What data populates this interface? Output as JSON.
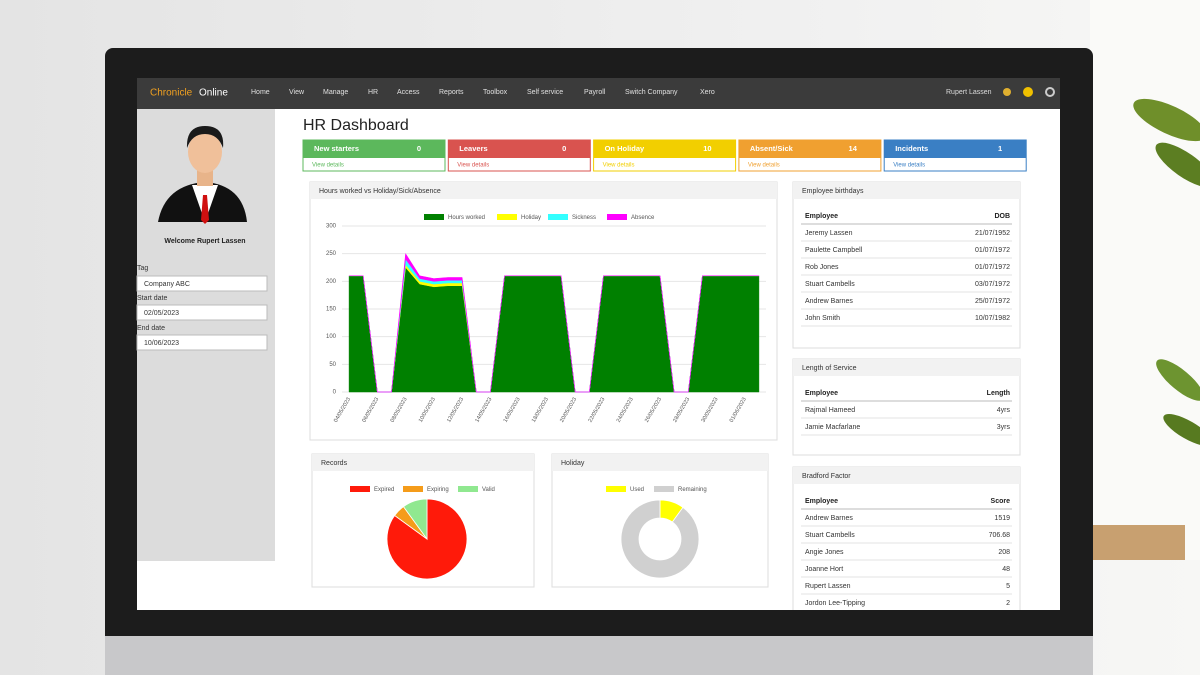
{
  "nav": {
    "brand_a": "Chronicle",
    "brand_b": "Online",
    "items": [
      "Home",
      "View",
      "Manage",
      "HR",
      "Access",
      "Reports",
      "Toolbox",
      "Self service",
      "Payroll",
      "Switch Company",
      "Xero"
    ],
    "user": "Rupert Lassen"
  },
  "sidebar": {
    "welcome": "Welcome Rupert Lassen",
    "tag_label": "Tag",
    "tag_value": "Company ABC",
    "start_label": "Start date",
    "start_value": "02/05/2023",
    "end_label": "End date",
    "end_value": "10/06/2023"
  },
  "page_title": "HR Dashboard",
  "cards": [
    {
      "title": "New starters",
      "count": 0,
      "link": "View details",
      "color": "#5cb85c"
    },
    {
      "title": "Leavers",
      "count": 0,
      "link": "View details",
      "color": "#d9534f"
    },
    {
      "title": "On Holiday",
      "count": 10,
      "link": "View details",
      "color": "#f2cf00"
    },
    {
      "title": "Absent/Sick",
      "count": 14,
      "link": "View details",
      "color": "#f0a030"
    },
    {
      "title": "Incidents",
      "count": 1,
      "link": "View details",
      "color": "#3a7fc4"
    }
  ],
  "hours_chart": {
    "type": "area",
    "title": "Hours worked vs Holiday/Sick/Absence",
    "categories": [
      "04/05/2023",
      null,
      "06/05/2023",
      null,
      "08/05/2023",
      null,
      "10/05/2023",
      null,
      "12/05/2023",
      null,
      "14/05/2023",
      null,
      "16/05/2023",
      null,
      "18/05/2023",
      null,
      "20/05/2023",
      null,
      "22/05/2023",
      null,
      "24/05/2023",
      null,
      "26/05/2023",
      null,
      "28/05/2023",
      null,
      "30/05/2023",
      null,
      "01/06/2023",
      null
    ],
    "series": [
      {
        "name": "Hours worked",
        "color": "#008000",
        "values": [
          210,
          210,
          0,
          0,
          225,
          195,
          190,
          192,
          192,
          0,
          0,
          210,
          210,
          210,
          210,
          210,
          0,
          0,
          210,
          210,
          210,
          210,
          210,
          0,
          0,
          210,
          210,
          210,
          210,
          210
        ]
      },
      {
        "name": "Holiday",
        "color": "#ffff00",
        "values": [
          0,
          0,
          0,
          0,
          5,
          5,
          5,
          5,
          5,
          0,
          0,
          0,
          0,
          0,
          0,
          0,
          0,
          0,
          0,
          0,
          0,
          0,
          0,
          0,
          0,
          0,
          0,
          0,
          0,
          0
        ]
      },
      {
        "name": "Sickness",
        "color": "#33ffff",
        "values": [
          0,
          0,
          0,
          0,
          10,
          5,
          5,
          5,
          5,
          0,
          0,
          0,
          0,
          0,
          0,
          0,
          0,
          0,
          0,
          0,
          0,
          0,
          0,
          0,
          0,
          0,
          0,
          0,
          0,
          0
        ]
      },
      {
        "name": "Absence",
        "color": "#ff00ff",
        "values": [
          0,
          0,
          0,
          0,
          10,
          5,
          5,
          5,
          5,
          0,
          0,
          0,
          0,
          0,
          0,
          0,
          0,
          0,
          0,
          0,
          0,
          0,
          0,
          0,
          0,
          0,
          0,
          0,
          0,
          0
        ]
      }
    ],
    "ylim": [
      0,
      300
    ],
    "yticks": [
      0,
      50,
      100,
      150,
      200,
      250,
      300
    ],
    "grid": true
  },
  "records_chart": {
    "type": "pie",
    "title": "Records",
    "categories": [
      "Expired",
      "Expiring",
      "Valid"
    ],
    "values": [
      85,
      5,
      10
    ],
    "colors": [
      "#ff1a0a",
      "#f59c1a",
      "#90e890"
    ]
  },
  "holiday_chart": {
    "type": "donut",
    "title": "Holiday",
    "categories": [
      "Used",
      "Remaining"
    ],
    "values": [
      10,
      90
    ],
    "colors": [
      "#ffff00",
      "#d0d0d0"
    ]
  },
  "tables": [
    {
      "title": "Employee birthdays",
      "columns": [
        "Employee",
        "DOB"
      ],
      "rows": [
        [
          "Jeremy Lassen",
          "21/07/1952"
        ],
        [
          "Paulette Campbell",
          "01/07/1972"
        ],
        [
          "Rob Jones",
          "01/07/1972"
        ],
        [
          "Stuart Cambells",
          "03/07/1972"
        ],
        [
          "Andrew Barnes",
          "25/07/1972"
        ],
        [
          "John Smith",
          "10/07/1982"
        ]
      ]
    },
    {
      "title": "Length of Service",
      "columns": [
        "Employee",
        "Length"
      ],
      "rows": [
        [
          "Rajmal Hameed",
          "4yrs"
        ],
        [
          "Jamie Macfarlane",
          "3yrs"
        ]
      ]
    },
    {
      "title": "Bradford Factor",
      "columns": [
        "Employee",
        "Score"
      ],
      "rows": [
        [
          "Andrew Barnes",
          1519
        ],
        [
          "Stuart Cambells",
          706.68
        ],
        [
          "Angie Jones",
          208
        ],
        [
          "Joanne Hort",
          48
        ],
        [
          "Rupert Lassen",
          5
        ],
        [
          "Jordon Lee-Tipping",
          2
        ]
      ]
    }
  ]
}
